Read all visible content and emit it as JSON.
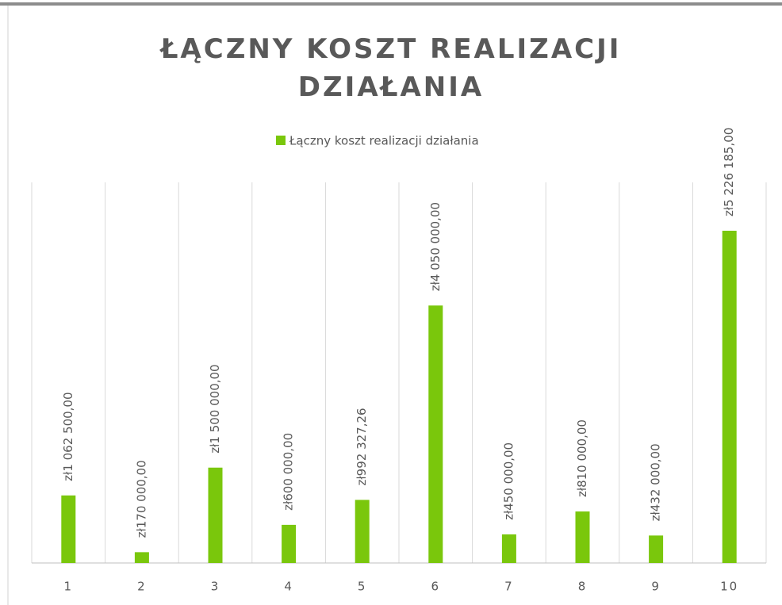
{
  "chart_data": {
    "type": "bar",
    "title": "ŁĄCZNY KOSZT REALIZACJI DZIAŁANIA",
    "categories": [
      "1",
      "2",
      "3",
      "4",
      "5",
      "6",
      "7",
      "8",
      "9",
      "10"
    ],
    "series": [
      {
        "name": "Łączny koszt realizacji działania",
        "color": "#7ac70c",
        "values": [
          1062500,
          170000,
          1500000,
          600000,
          992327.26,
          4050000,
          450000,
          810000,
          432000,
          5226185
        ],
        "value_labels": [
          "zł1 062 500,00",
          "zł170 000,00",
          "zł1 500 000,00",
          "zł600 000,00",
          "zł992 327,26",
          "zł4 050 000,00",
          "zł450 000,00",
          "zł810 000,00",
          "zł432 000,00",
          "zł5 226 185,00"
        ]
      }
    ],
    "legend": "top"
  }
}
